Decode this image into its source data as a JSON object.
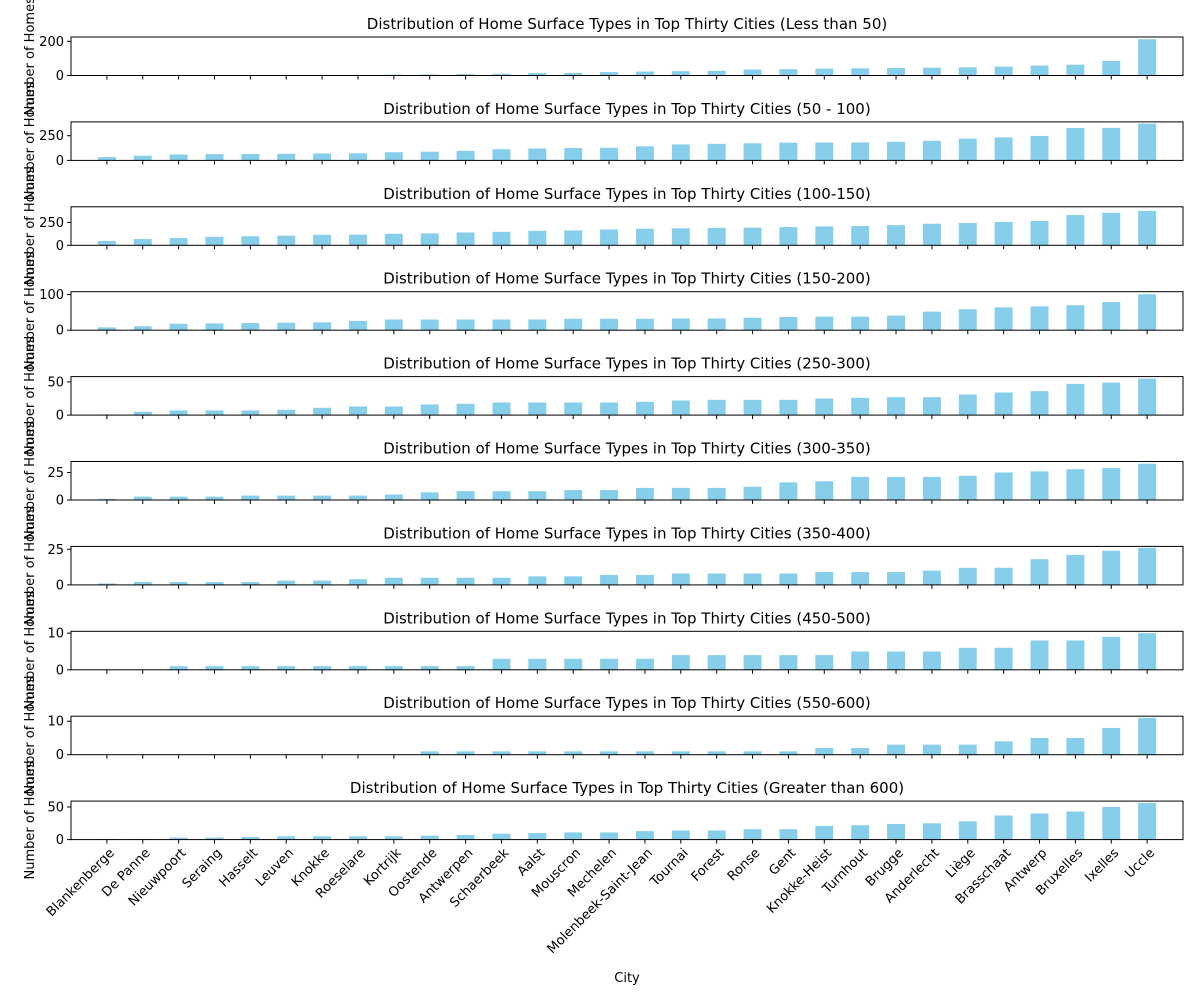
{
  "chart_data": {
    "type": "bar",
    "xlabel": "City",
    "ylabel": "Number of Homes",
    "bar_color": "#87ceeb",
    "categories": [
      "Blankenberge",
      "De Panne",
      "Nieuwpoort",
      "Seraing",
      "Hasselt",
      "Leuven",
      "Knokke",
      "Roeselare",
      "Kortrijk",
      "Oostende",
      "Antwerpen",
      "Schaerbeek",
      "Aalst",
      "Mouscron",
      "Mechelen",
      "Molenbeek-Saint-Jean",
      "Tournai",
      "Forest",
      "Ronse",
      "Gent",
      "Knokke-Heist",
      "Turnhout",
      "Brugge",
      "Anderlecht",
      "Liège",
      "Brasschaat",
      "Antwerp",
      "Bruxelles",
      "Ixelles",
      "Uccle"
    ],
    "panels": [
      {
        "title": "Distribution of Home Surface Types in Top Thirty Cities (Less than 50)",
        "ylim": [
          0,
          225
        ],
        "yticks": [
          0,
          200
        ],
        "values": [
          0,
          0,
          0,
          1,
          1,
          1,
          1,
          2,
          5,
          6,
          8,
          10,
          14,
          15,
          20,
          23,
          25,
          27,
          35,
          37,
          40,
          42,
          44,
          46,
          48,
          52,
          58,
          63,
          85,
          212
        ]
      },
      {
        "title": "Distribution of Home Surface Types in Top Thirty Cities (50 - 100)",
        "ylim": [
          0,
          390
        ],
        "yticks": [
          0,
          250
        ],
        "values": [
          33,
          48,
          60,
          63,
          65,
          67,
          70,
          72,
          83,
          88,
          97,
          113,
          121,
          125,
          128,
          143,
          162,
          168,
          173,
          180,
          181,
          182,
          189,
          198,
          220,
          233,
          248,
          328,
          330,
          372
        ]
      },
      {
        "title": "Distribution of Home Surface Types in Top Thirty Cities (100-150)",
        "ylim": [
          0,
          420
        ],
        "yticks": [
          0,
          250
        ],
        "values": [
          47,
          68,
          80,
          92,
          99,
          105,
          115,
          117,
          125,
          130,
          140,
          147,
          158,
          162,
          173,
          181,
          186,
          190,
          192,
          199,
          206,
          210,
          220,
          235,
          243,
          255,
          265,
          330,
          355,
          375
        ]
      },
      {
        "title": "Distribution of Home Surface Types in Top Thirty Cities (150-200)",
        "ylim": [
          0,
          108
        ],
        "yticks": [
          0,
          100
        ],
        "values": [
          8,
          11,
          18,
          19,
          20,
          21,
          22,
          26,
          30,
          30,
          30,
          30,
          30,
          32,
          32,
          32,
          33,
          33,
          35,
          37,
          38,
          38,
          41,
          52,
          59,
          64,
          67,
          70,
          79,
          101
        ]
      },
      {
        "title": "Distribution of Home Surface Types in Top Thirty Cities (250-300)",
        "ylim": [
          0,
          58
        ],
        "yticks": [
          0,
          50
        ],
        "values": [
          1,
          5,
          7,
          7,
          7,
          8,
          11,
          13,
          13,
          16,
          17,
          19,
          19,
          19,
          19,
          20,
          22,
          23,
          23,
          23,
          25,
          26,
          27,
          27,
          31,
          34,
          36,
          47,
          49,
          55
        ]
      },
      {
        "title": "Distribution of Home Surface Types in Top Thirty Cities (300-350)",
        "ylim": [
          0,
          35
        ],
        "yticks": [
          0,
          25
        ],
        "values": [
          1,
          3,
          3,
          3,
          4,
          4,
          4,
          4,
          5,
          7,
          8,
          8,
          8,
          9,
          9,
          11,
          11,
          11,
          12,
          16,
          17,
          21,
          21,
          21,
          22,
          25,
          26,
          28,
          29,
          33
        ]
      },
      {
        "title": "Distribution of Home Surface Types in Top Thirty Cities (350-400)",
        "ylim": [
          0,
          27
        ],
        "yticks": [
          0,
          25
        ],
        "values": [
          1,
          2,
          2,
          2,
          2,
          3,
          3,
          4,
          5,
          5,
          5,
          5,
          6,
          6,
          7,
          7,
          8,
          8,
          8,
          8,
          9,
          9,
          9,
          10,
          12,
          12,
          18,
          21,
          24,
          26
        ]
      },
      {
        "title": "Distribution of Home Surface Types in Top Thirty Cities (450-500)",
        "ylim": [
          0,
          10.5
        ],
        "yticks": [
          0,
          10
        ],
        "values": [
          0,
          0,
          1,
          1,
          1,
          1,
          1,
          1,
          1,
          1,
          1,
          3,
          3,
          3,
          3,
          3,
          4,
          4,
          4,
          4,
          4,
          5,
          5,
          5,
          6,
          6,
          8,
          8,
          9,
          10
        ]
      },
      {
        "title": "Distribution of Home Surface Types in Top Thirty Cities (550-600)",
        "ylim": [
          0,
          11.5
        ],
        "yticks": [
          0,
          10
        ],
        "values": [
          0,
          0,
          0,
          0,
          0,
          0,
          0,
          0,
          0,
          1,
          1,
          1,
          1,
          1,
          1,
          1,
          1,
          1,
          1,
          1,
          2,
          2,
          3,
          3,
          3,
          4,
          5,
          5,
          8,
          11
        ]
      },
      {
        "title": "Distribution of Home Surface Types in Top Thirty Cities (Greater than 600)",
        "ylim": [
          0,
          59
        ],
        "yticks": [
          0,
          50
        ],
        "values": [
          1,
          1,
          3,
          3,
          4,
          5,
          5,
          5,
          5,
          6,
          7,
          9,
          10,
          11,
          11,
          13,
          14,
          14,
          16,
          16,
          21,
          22,
          24,
          25,
          28,
          37,
          40,
          43,
          50,
          56
        ]
      }
    ]
  }
}
